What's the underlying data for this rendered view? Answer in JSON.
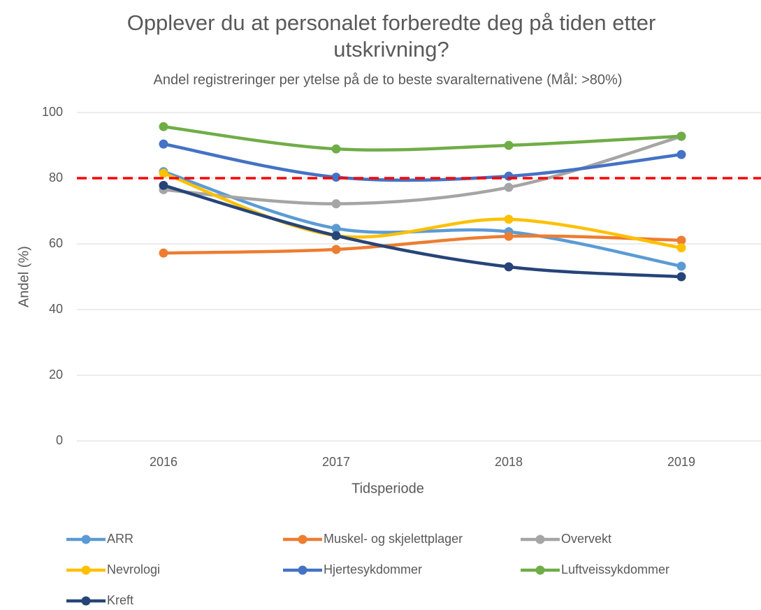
{
  "chart_data": {
    "type": "line",
    "title": "Opplever du at personalet forberedte deg på tiden etter utskrivning?",
    "subtitle": "Andel registreringer per ytelse på de to beste svaralternativene (Mål: >80%)",
    "x_label": "Tidsperiode",
    "y_label": "Andel (%)",
    "categories": [
      "2016",
      "2017",
      "2018",
      "2019"
    ],
    "series": [
      {
        "name": "ARR",
        "color": "#5b9bd5",
        "values": [
          82,
          64.7,
          63.7,
          53.2
        ]
      },
      {
        "name": "Muskel- og skjelettplager",
        "color": "#ed7d31",
        "values": [
          57.2,
          58.3,
          62.3,
          61.1
        ]
      },
      {
        "name": "Overvekt",
        "color": "#a5a5a5",
        "values": [
          76.5,
          72.2,
          77.2,
          92.7
        ]
      },
      {
        "name": "Nevrologi",
        "color": "#ffc000",
        "values": [
          81.5,
          62.5,
          67.5,
          58.8
        ]
      },
      {
        "name": "Hjertesykdommer",
        "color": "#4472c4",
        "values": [
          90.4,
          80.3,
          80.6,
          87.2
        ]
      },
      {
        "name": "Luftveissykdommer",
        "color": "#70ad47",
        "values": [
          95.7,
          88.9,
          90.0,
          92.8
        ]
      },
      {
        "name": "Kreft",
        "color": "#264478",
        "values": [
          77.8,
          62.5,
          53.0,
          50.0
        ]
      }
    ],
    "reference_line": {
      "value": 80,
      "color": "#ff0000"
    },
    "ylim": [
      0,
      100
    ],
    "yticks": [
      0,
      20,
      40,
      60,
      80,
      100
    ],
    "grid": true,
    "smooth": true,
    "legend": "bottom"
  }
}
